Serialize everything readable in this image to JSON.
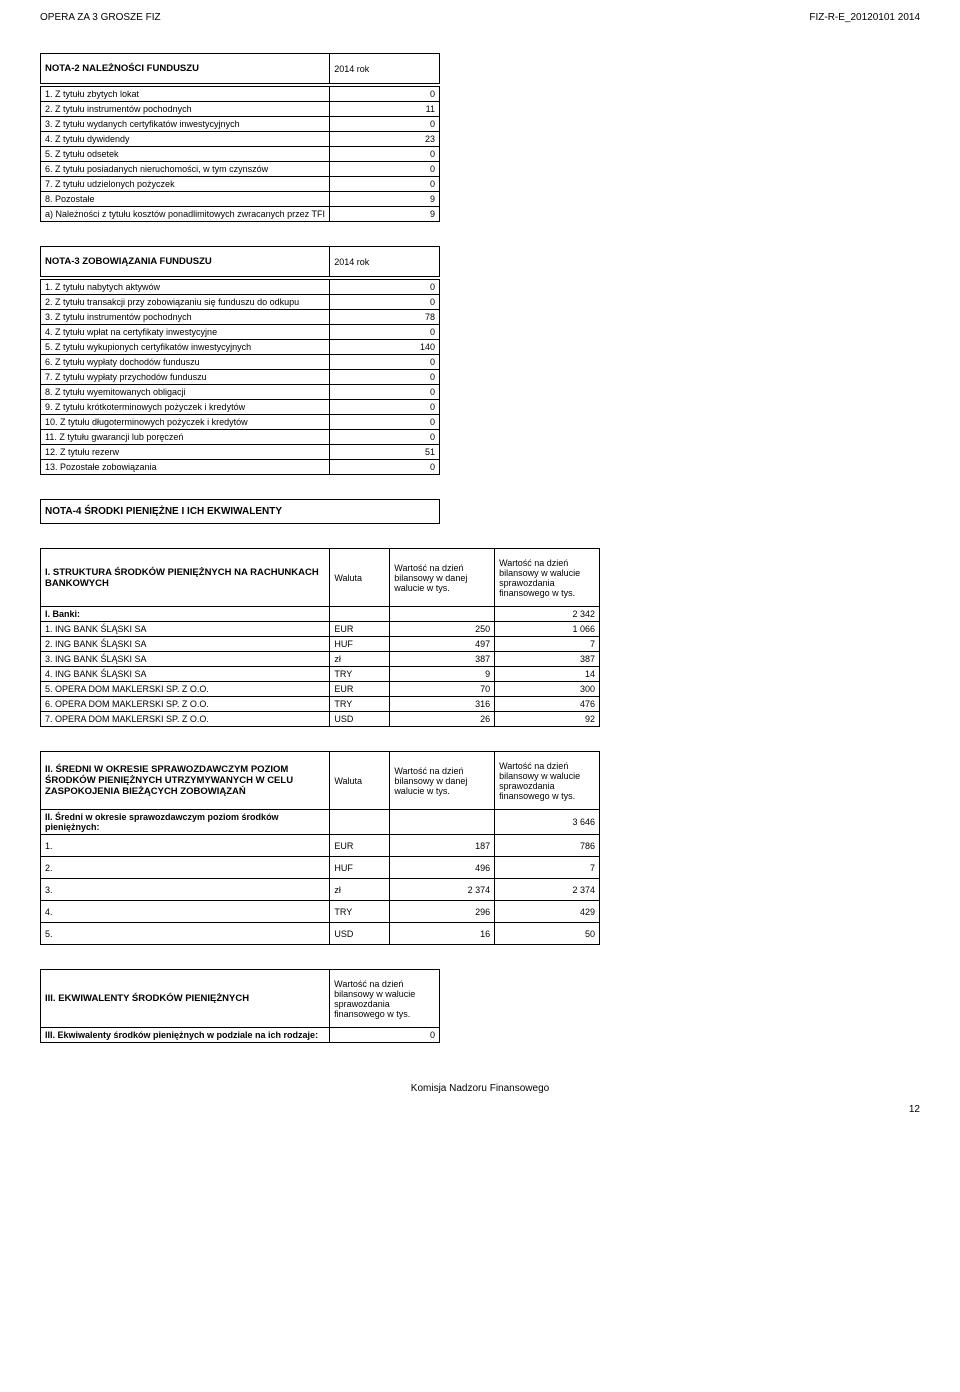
{
  "header": {
    "left": "OPERA ZA 3 GROSZE FIZ",
    "right": "FIZ-R-E_20120101 2014"
  },
  "nota2": {
    "title": "NOTA-2 NALEŻNOŚCI FUNDUSZU",
    "period": "2014 rok",
    "rows": [
      {
        "label": "1. Z tytułu zbytych lokat",
        "value": "0"
      },
      {
        "label": "2. Z tytułu instrumentów pochodnych",
        "value": "11"
      },
      {
        "label": "3. Z tytułu wydanych certyfikatów inwestycyjnych",
        "value": "0"
      },
      {
        "label": "4. Z tytułu dywidendy",
        "value": "23"
      },
      {
        "label": "5. Z tytułu odsetek",
        "value": "0"
      },
      {
        "label": "6. Z tytułu posiadanych nieruchomości, w tym czynszów",
        "value": "0"
      },
      {
        "label": "7. Z tytułu udzielonych pożyczek",
        "value": "0"
      },
      {
        "label": "8. Pozostałe",
        "value": "9"
      },
      {
        "label": "a) Należności z tytułu kosztów ponadlimitowych zwracanych przez TFI",
        "value": "9"
      }
    ]
  },
  "nota3": {
    "title": "NOTA-3 ZOBOWIĄZANIA FUNDUSZU",
    "period": "2014 rok",
    "rows": [
      {
        "label": "1. Z tytułu nabytych aktywów",
        "value": "0"
      },
      {
        "label": "2. Z tytułu transakcji przy zobowiązaniu się funduszu do odkupu",
        "value": "0"
      },
      {
        "label": "3. Z tytułu instrumentów pochodnych",
        "value": "78"
      },
      {
        "label": "4. Z tytułu wpłat na certyfikaty inwestycyjne",
        "value": "0"
      },
      {
        "label": "5. Z tytułu wykupionych certyfikatów inwestycyjnych",
        "value": "140"
      },
      {
        "label": "6. Z tytułu wypłaty dochodów funduszu",
        "value": "0"
      },
      {
        "label": "7. Z tytułu wypłaty przychodów funduszu",
        "value": "0"
      },
      {
        "label": "8. Z tytułu wyemitowanych obligacji",
        "value": "0"
      },
      {
        "label": "9. Z tytułu krótkoterminowych pożyczek i kredytów",
        "value": "0"
      },
      {
        "label": "10. Z tytułu długoterminowych pożyczek i kredytów",
        "value": "0"
      },
      {
        "label": "11. Z tytułu gwarancji lub poręczeń",
        "value": "0"
      },
      {
        "label": "12. Z tytułu rezerw",
        "value": "51"
      },
      {
        "label": "13. Pozostałe zobowiązania",
        "value": "0"
      }
    ]
  },
  "nota4": {
    "title": "NOTA-4 ŚRODKI PIENIĘŻNE I ICH EKWIWALENTY",
    "section1": {
      "title": "I. STRUKTURA ŚRODKÓW PIENIĘŻNYCH NA RACHUNKACH BANKOWYCH",
      "col_waluta": "Waluta",
      "col_h1": "Wartość na dzień bilansowy w danej walucie w tys.",
      "col_h2": "Wartość na dzień bilansowy w walucie sprawozdania finansowego w tys.",
      "banks_label": "I. Banki:",
      "banks_total": "2 342",
      "rows": [
        {
          "label": "1. ING BANK ŚLĄSKI SA",
          "cur": "EUR",
          "v1": "250",
          "v2": "1 066"
        },
        {
          "label": "2. ING BANK ŚLĄSKI SA",
          "cur": "HUF",
          "v1": "497",
          "v2": "7"
        },
        {
          "label": "3. ING BANK ŚLĄSKI SA",
          "cur": "zł",
          "v1": "387",
          "v2": "387"
        },
        {
          "label": "4. ING BANK ŚLĄSKI SA",
          "cur": "TRY",
          "v1": "9",
          "v2": "14"
        },
        {
          "label": "5. OPERA DOM MAKLERSKI SP. Z O.O.",
          "cur": "EUR",
          "v1": "70",
          "v2": "300"
        },
        {
          "label": "6. OPERA DOM MAKLERSKI SP. Z O.O.",
          "cur": "TRY",
          "v1": "316",
          "v2": "476"
        },
        {
          "label": "7. OPERA DOM MAKLERSKI SP. Z O.O.",
          "cur": "USD",
          "v1": "26",
          "v2": "92"
        }
      ]
    },
    "section2": {
      "title": "II. ŚREDNI W OKRESIE SPRAWOZDAWCZYM POZIOM ŚRODKÓW PIENIĘŻNYCH UTRZYMYWANYCH W CELU ZASPOKOJENIA BIEŻĄCYCH ZOBOWIĄZAŃ",
      "col_waluta": "Waluta",
      "col_h1": "Wartość na dzień bilansowy w danej walucie w tys.",
      "col_h2": "Wartość na dzień bilansowy w walucie sprawozdania finansowego w tys.",
      "sub_label": "II. Średni w okresie sprawozdawczym poziom środków pieniężnych:",
      "sub_total": "3 646",
      "rows": [
        {
          "label": "1.",
          "cur": "EUR",
          "v1": "187",
          "v2": "786"
        },
        {
          "label": "2.",
          "cur": "HUF",
          "v1": "496",
          "v2": "7"
        },
        {
          "label": "3.",
          "cur": "zł",
          "v1": "2 374",
          "v2": "2 374"
        },
        {
          "label": "4.",
          "cur": "TRY",
          "v1": "296",
          "v2": "429"
        },
        {
          "label": "5.",
          "cur": "USD",
          "v1": "16",
          "v2": "50"
        }
      ]
    },
    "section3": {
      "title": "III. EKWIWALENTY ŚRODKÓW PIENIĘŻNYCH",
      "col_h": "Wartość na dzień bilansowy w walucie sprawozdania finansowego w tys.",
      "row_label": "III. Ekwiwalenty środków pieniężnych w podziale na ich rodzaje:",
      "value": "0"
    }
  },
  "footer": "Komisja Nadzoru Finansowego",
  "page": "12"
}
